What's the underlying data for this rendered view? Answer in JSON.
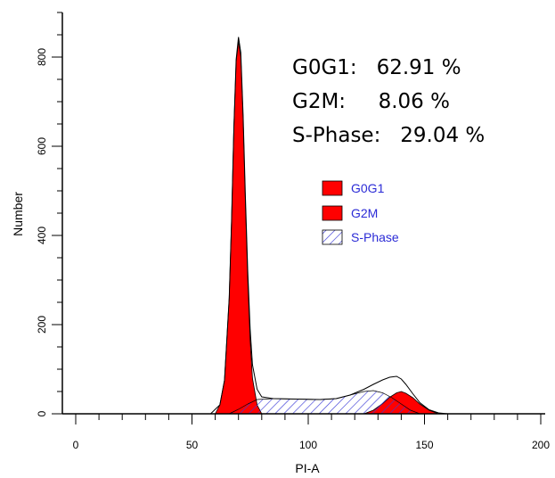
{
  "chart_data": {
    "type": "area",
    "xlabel": "PI-A",
    "ylabel": "Number",
    "xlim": [
      0,
      200
    ],
    "ylim": [
      0,
      900
    ],
    "x_ticks": [
      0,
      50,
      100,
      150,
      200
    ],
    "y_ticks": [
      0,
      200,
      400,
      600,
      800
    ],
    "x_minor_step": 10,
    "y_minor_step": 50,
    "colors": {
      "fill": "#ff0000",
      "hatch": "#3b3bd6",
      "outline": "#000000"
    },
    "series": [
      {
        "name": "G0G1",
        "style": "filled",
        "x": [
          60,
          62,
          64,
          66,
          67,
          68,
          69,
          70,
          71,
          72,
          73,
          74,
          75,
          76,
          78,
          80
        ],
        "y": [
          0,
          20,
          75,
          260,
          430,
          640,
          790,
          835,
          800,
          660,
          470,
          300,
          165,
          80,
          20,
          0
        ]
      },
      {
        "name": "G2M",
        "style": "filled",
        "x": [
          124,
          128,
          132,
          135,
          138,
          140,
          142,
          145,
          148,
          152,
          156
        ],
        "y": [
          0,
          8,
          23,
          37,
          47,
          50,
          46,
          36,
          22,
          8,
          0
        ]
      },
      {
        "name": "S-Phase",
        "style": "hatched",
        "x": [
          66,
          70,
          74,
          78,
          85,
          95,
          105,
          112,
          118,
          124,
          128,
          132,
          136,
          140,
          144,
          148
        ],
        "y": [
          0,
          10,
          22,
          32,
          34,
          33,
          32,
          34,
          42,
          50,
          52,
          47,
          36,
          22,
          8,
          0
        ]
      },
      {
        "name": "total",
        "style": "outline",
        "x": [
          58,
          62,
          64,
          66,
          67,
          68,
          69,
          70,
          71,
          72,
          73,
          74,
          75,
          76,
          78,
          80,
          85,
          95,
          105,
          112,
          118,
          124,
          128,
          132,
          135,
          138,
          140,
          142,
          145,
          148,
          152,
          156,
          160
        ],
        "y": [
          0,
          20,
          75,
          260,
          430,
          640,
          795,
          845,
          810,
          670,
          485,
          320,
          190,
          110,
          55,
          38,
          34,
          33,
          32,
          34,
          42,
          55,
          66,
          76,
          82,
          84,
          78,
          66,
          45,
          25,
          9,
          2,
          0
        ]
      }
    ],
    "legend": {
      "placement": "center-right",
      "entries": [
        {
          "label": "G0G1",
          "style": "filled"
        },
        {
          "label": "G2M",
          "style": "filled"
        },
        {
          "label": "S-Phase",
          "style": "hatched"
        }
      ]
    },
    "annotations": [
      "G0G1:   62.91 %",
      "G2M:     8.06 %",
      "S-Phase:   29.04 %"
    ]
  }
}
